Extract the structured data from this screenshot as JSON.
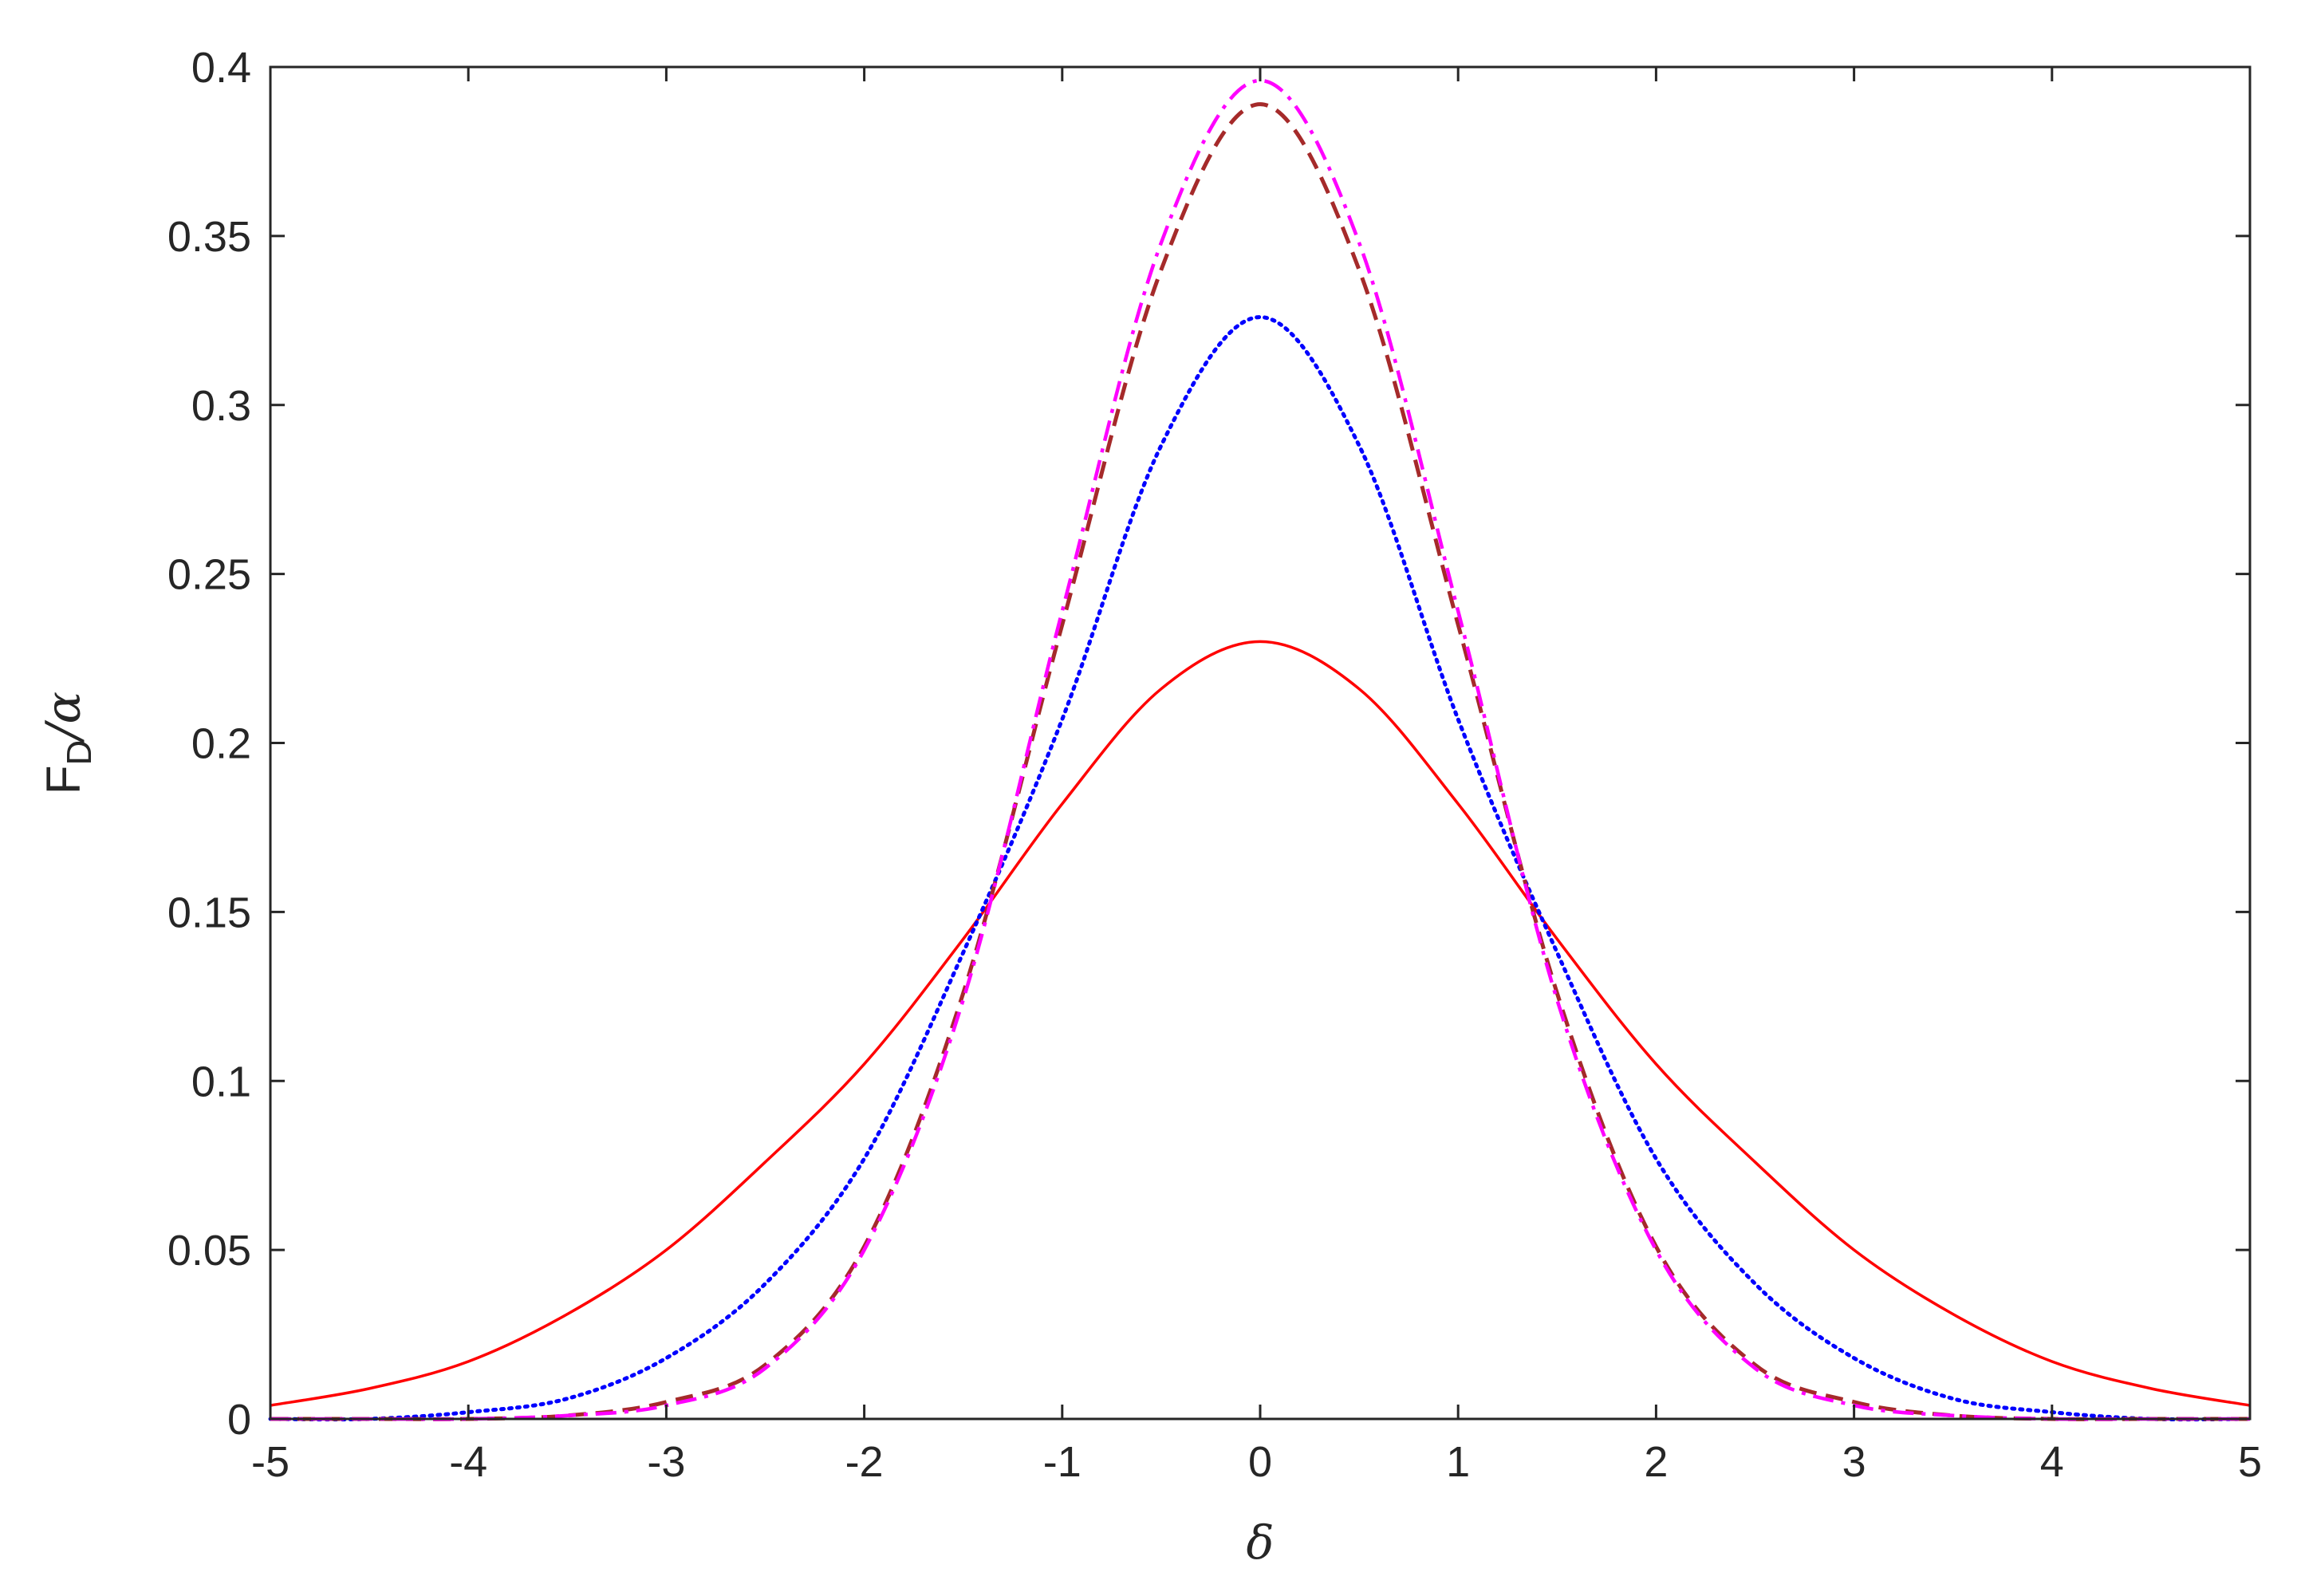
{
  "chart_data": {
    "type": "line",
    "title": "",
    "xlabel": "δ",
    "ylabel": {
      "main": "F",
      "subscript": "D",
      "suffix": "/α"
    },
    "xlim": [
      -5,
      5
    ],
    "ylim": [
      0,
      0.4
    ],
    "x_ticks": [
      -5,
      -4,
      -3,
      -2,
      -1,
      0,
      1,
      2,
      3,
      4,
      5
    ],
    "x_tick_labels": [
      "-5",
      "-4",
      "-3",
      "-2",
      "-1",
      "0",
      "1",
      "2",
      "3",
      "4",
      "5"
    ],
    "y_ticks": [
      0,
      0.05,
      0.1,
      0.15,
      0.2,
      0.25,
      0.3,
      0.35,
      0.4
    ],
    "y_tick_labels": [
      "0",
      "0.05",
      "0.1",
      "0.15",
      "0.2",
      "0.25",
      "0.3",
      "0.35",
      "0.4"
    ],
    "grid": false,
    "legend": "none",
    "x": [
      -5,
      -4.5,
      -4,
      -3.5,
      -3,
      -2.5,
      -2,
      -1.5,
      -1,
      -0.5,
      0,
      0.5,
      1,
      1.5,
      2,
      2.5,
      3,
      3.5,
      4,
      4.5,
      5
    ],
    "series": [
      {
        "color": "#ff0000",
        "style": "solid",
        "values": [
          0.004,
          0.009,
          0.017,
          0.031,
          0.05,
          0.076,
          0.105,
          0.142,
          0.182,
          0.216,
          0.23,
          0.216,
          0.182,
          0.142,
          0.105,
          0.076,
          0.05,
          0.031,
          0.017,
          0.009,
          0.004
        ]
      },
      {
        "color": "#0000ff",
        "style": "dotted",
        "values": [
          0.0,
          0.0,
          0.002,
          0.006,
          0.018,
          0.04,
          0.077,
          0.138,
          0.207,
          0.288,
          0.326,
          0.288,
          0.207,
          0.138,
          0.077,
          0.04,
          0.018,
          0.006,
          0.002,
          0.0,
          0.0
        ]
      },
      {
        "color": "#a52a2a",
        "style": "dashed",
        "values": [
          0.0,
          0.0,
          0.0,
          0.001,
          0.005,
          0.016,
          0.051,
          0.126,
          0.235,
          0.34,
          0.389,
          0.34,
          0.235,
          0.126,
          0.051,
          0.016,
          0.005,
          0.001,
          0.0,
          0.0,
          0.0
        ]
      },
      {
        "color": "#ff00ff",
        "style": "dashdot",
        "values": [
          0.0,
          0.0,
          0.0,
          0.001,
          0.004,
          0.015,
          0.05,
          0.124,
          0.239,
          0.348,
          0.396,
          0.348,
          0.239,
          0.124,
          0.05,
          0.015,
          0.004,
          0.001,
          0.0,
          0.0,
          0.0
        ]
      }
    ]
  }
}
